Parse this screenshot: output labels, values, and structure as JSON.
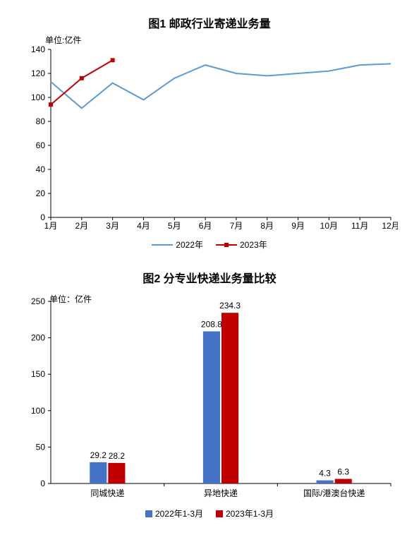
{
  "chart1": {
    "type": "line",
    "title": "图1    邮政行业寄递业务量",
    "unit_label": "单位:亿件",
    "title_fontsize": 15,
    "unit_fontsize": 12,
    "x_categories": [
      "1月",
      "2月",
      "3月",
      "4月",
      "5月",
      "6月",
      "7月",
      "8月",
      "9月",
      "10月",
      "11月",
      "12月"
    ],
    "ylim": [
      0,
      140
    ],
    "ytick_step": 20,
    "series": [
      {
        "name": "2022年",
        "color": "#5b9bd5",
        "line_width": 2,
        "marker": "none",
        "values": [
          113,
          91,
          112,
          98,
          116,
          127,
          120,
          118,
          120,
          122,
          127,
          128
        ]
      },
      {
        "name": "2023年",
        "color": "#c00000",
        "line_width": 2,
        "marker": "square",
        "marker_size": 6,
        "values": [
          94,
          116,
          131
        ]
      }
    ],
    "background_color": "#ffffff",
    "axis_color": "#000000"
  },
  "chart2": {
    "type": "bar",
    "title": "图2    分专业快递业务量比较",
    "unit_label": "单位：亿件",
    "title_fontsize": 15,
    "unit_fontsize": 12,
    "categories": [
      "同城快递",
      "异地快递",
      "国际/港澳台快递"
    ],
    "ylim": [
      0,
      250
    ],
    "ytick_step": 50,
    "series": [
      {
        "name": "2022年1-3月",
        "color": "#4472c4",
        "values": [
          29.2,
          208.8,
          4.3
        ]
      },
      {
        "name": "2023年1-3月",
        "color": "#c00000",
        "values": [
          28.2,
          234.3,
          6.3
        ]
      }
    ],
    "bar_width": 0.3,
    "background_color": "#ffffff",
    "axis_color": "#000000",
    "data_label_fontsize": 12
  }
}
